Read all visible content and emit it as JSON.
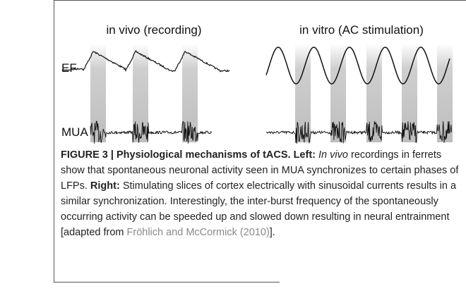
{
  "figure": {
    "panels": [
      {
        "title": "in vivo (recording)"
      },
      {
        "title": "in vitro (AC stimulation)"
      }
    ],
    "row_labels": [
      "EF",
      "MUA"
    ]
  },
  "caption": {
    "label": "FIGURE 3 | Physiological mechanisms of tACS. Left:",
    "italic": "In vivo",
    "text1": "recordings in ferrets show that spontaneous neuronal activity seen in MUA synchronizes to certain phases of LFPs.",
    "right": "Right:",
    "text2": "Stimulating slices of cortex electrically with sinusoidal currents results in a similar synchronization. Interestingly, the inter-burst frequency of the spontaneously occurring activity can be speeded up and slowed down resulting in neural entrainment [adapted from",
    "citation": "Fröhlich and McCormick (2010)",
    "end": "]."
  }
}
